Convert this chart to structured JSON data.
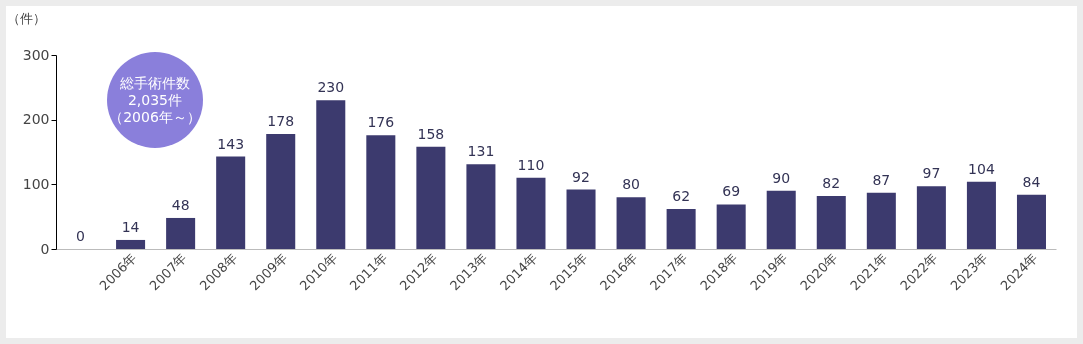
{
  "chart_data": {
    "type": "bar",
    "ylabel": "（件）",
    "categories": [
      null,
      "2006年",
      "2007年",
      "2008年",
      "2009年",
      "2010年",
      "2011年",
      "2012年",
      "2013年",
      "2014年",
      "2015年",
      "2016年",
      "2017年",
      "2018年",
      "2019年",
      "2020年",
      "2021年",
      "2022年",
      "2023年",
      "2024年"
    ],
    "values": [
      0,
      14,
      48,
      143,
      178,
      230,
      176,
      158,
      131,
      110,
      92,
      80,
      62,
      69,
      90,
      82,
      87,
      97,
      104,
      84
    ],
    "color": "#3c3a6e",
    "ylim": [
      0,
      300
    ],
    "yticks": [
      0,
      100,
      200,
      300
    ],
    "grid": false,
    "data_labels": true,
    "annotations": [
      "総手術件数",
      "2,035件",
      "（2006年～）"
    ]
  }
}
